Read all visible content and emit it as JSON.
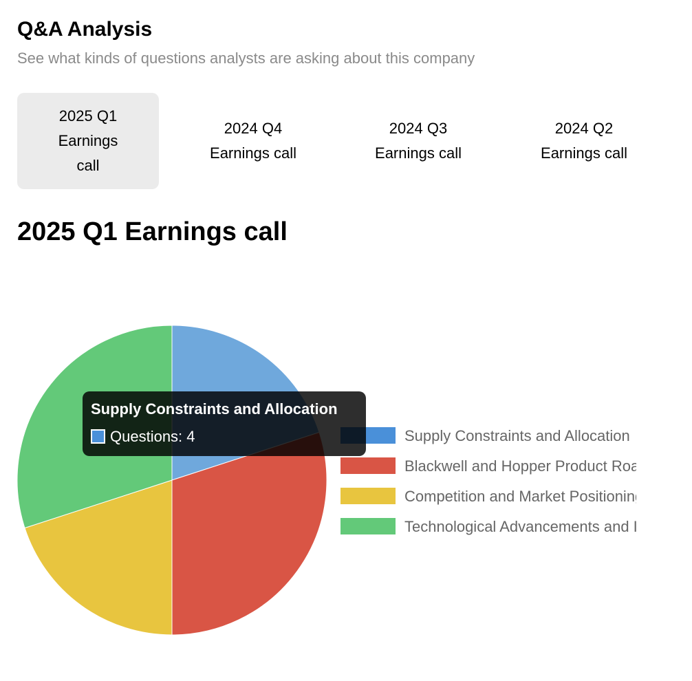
{
  "header": {
    "title": "Q&A Analysis",
    "subtitle": "See what kinds of questions analysts are asking about this company"
  },
  "tabs": [
    {
      "label": "2025 Q1 Earnings call",
      "active": true
    },
    {
      "label": "2024 Q4 Earnings call",
      "active": false
    },
    {
      "label": "2024 Q3 Earnings call",
      "active": false
    },
    {
      "label": "2024 Q2 Earnings call",
      "active": false
    }
  ],
  "section": {
    "title": "2025 Q1 Earnings call"
  },
  "tooltip": {
    "title": "Supply Constraints and Allocation",
    "label": "Questions: 4",
    "color": "#4a90d9"
  },
  "chart_data": {
    "type": "pie",
    "series_name": "Questions",
    "categories": [
      "Supply Constraints and Allocation",
      "Blackwell and Hopper Product Roadmap",
      "Competition and Market Positioning",
      "Technological Advancements and Innovation"
    ],
    "values": [
      4,
      6,
      4,
      6
    ],
    "colors": [
      "#6fa8dc",
      "#d95545",
      "#e8c53f",
      "#63c979"
    ],
    "legend_colors": [
      "#4a90d9",
      "#d95545",
      "#e8c53f",
      "#63c979"
    ],
    "highlighted_index": 0,
    "legend_position": "right"
  }
}
